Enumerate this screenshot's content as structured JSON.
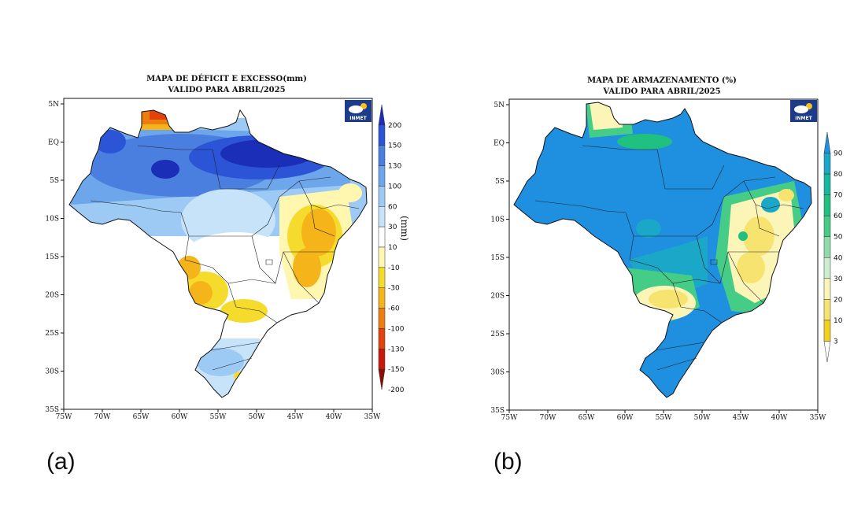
{
  "panels": [
    {
      "id": "a",
      "caption": "(a)",
      "title_line1": "MAPA DE DÉFICIT E EXCESSO(mm)",
      "title_line2": "VALIDO PARA ABRIL/2025",
      "unit_label": "(mm)",
      "logo_text": "INMET",
      "x_ticks": [
        "75W",
        "70W",
        "65W",
        "60W",
        "55W",
        "50W",
        "45W",
        "40W",
        "35W"
      ],
      "y_ticks": [
        "5N",
        "EQ",
        "5S",
        "10S",
        "15S",
        "20S",
        "25S",
        "30S",
        "35S"
      ],
      "colorbar": {
        "labels": [
          "200",
          "150",
          "130",
          "100",
          "60",
          "30",
          "10",
          "-10",
          "-30",
          "-60",
          "-100",
          "-130",
          "-150",
          "-200"
        ],
        "colors": [
          "#1a2eb8",
          "#2b55d6",
          "#4a7fe0",
          "#6ea6ec",
          "#9ccaf4",
          "#c6e3fa",
          "#ffffff",
          "#fff7b0",
          "#f5dc2c",
          "#f5b51a",
          "#ee7d10",
          "#e2420c",
          "#c81a0a",
          "#8c0c06"
        ]
      }
    },
    {
      "id": "b",
      "caption": "(b)",
      "title_line1": "MAPA DE ARMAZENAMENTO (%)",
      "title_line2": "VALIDO PARA ABRIL/2025",
      "unit_label": "",
      "logo_text": "INMET",
      "x_ticks": [
        "75W",
        "70W",
        "65W",
        "60W",
        "55W",
        "50W",
        "45W",
        "40W",
        "35W"
      ],
      "y_ticks": [
        "5N",
        "EQ",
        "5S",
        "10S",
        "15S",
        "20S",
        "25S",
        "30S",
        "35S"
      ],
      "colorbar": {
        "labels": [
          "90",
          "80",
          "70",
          "60",
          "50",
          "40",
          "30",
          "20",
          "10",
          "3"
        ],
        "colors": [
          "#1f8fe0",
          "#1ba8c8",
          "#14b9a0",
          "#1fc080",
          "#45cd88",
          "#8fdcaa",
          "#cbeed0",
          "#fbf5b8",
          "#f7e470",
          "#f2d21e",
          "#ffffff"
        ]
      }
    }
  ]
}
